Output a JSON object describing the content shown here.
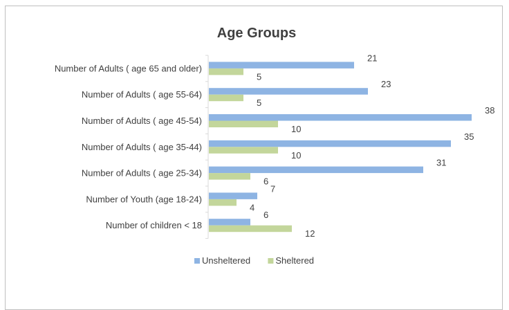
{
  "chart_data": {
    "type": "bar",
    "orientation": "horizontal",
    "title": "Age Groups",
    "xlabel": "",
    "ylabel": "",
    "categories": [
      "Number of Adults ( age 65 and older)",
      "Number of Adults ( age 55-64)",
      "Number of Adults ( age 45-54)",
      "Number of Adults ( age 35-44)",
      "Number of Adults ( age 25-34)",
      "Number of Youth (age 18-24)",
      "Number of children < 18"
    ],
    "series": [
      {
        "name": "Unsheltered",
        "color": "#8eb4e3",
        "values": [
          21,
          23,
          38,
          35,
          31,
          7,
          6
        ]
      },
      {
        "name": "Sheltered",
        "color": "#c3d69b",
        "values": [
          5,
          5,
          10,
          10,
          6,
          4,
          12
        ]
      }
    ],
    "xlim": [
      0,
      40
    ],
    "data_labels": true,
    "grid": false,
    "legend_position": "bottom"
  }
}
